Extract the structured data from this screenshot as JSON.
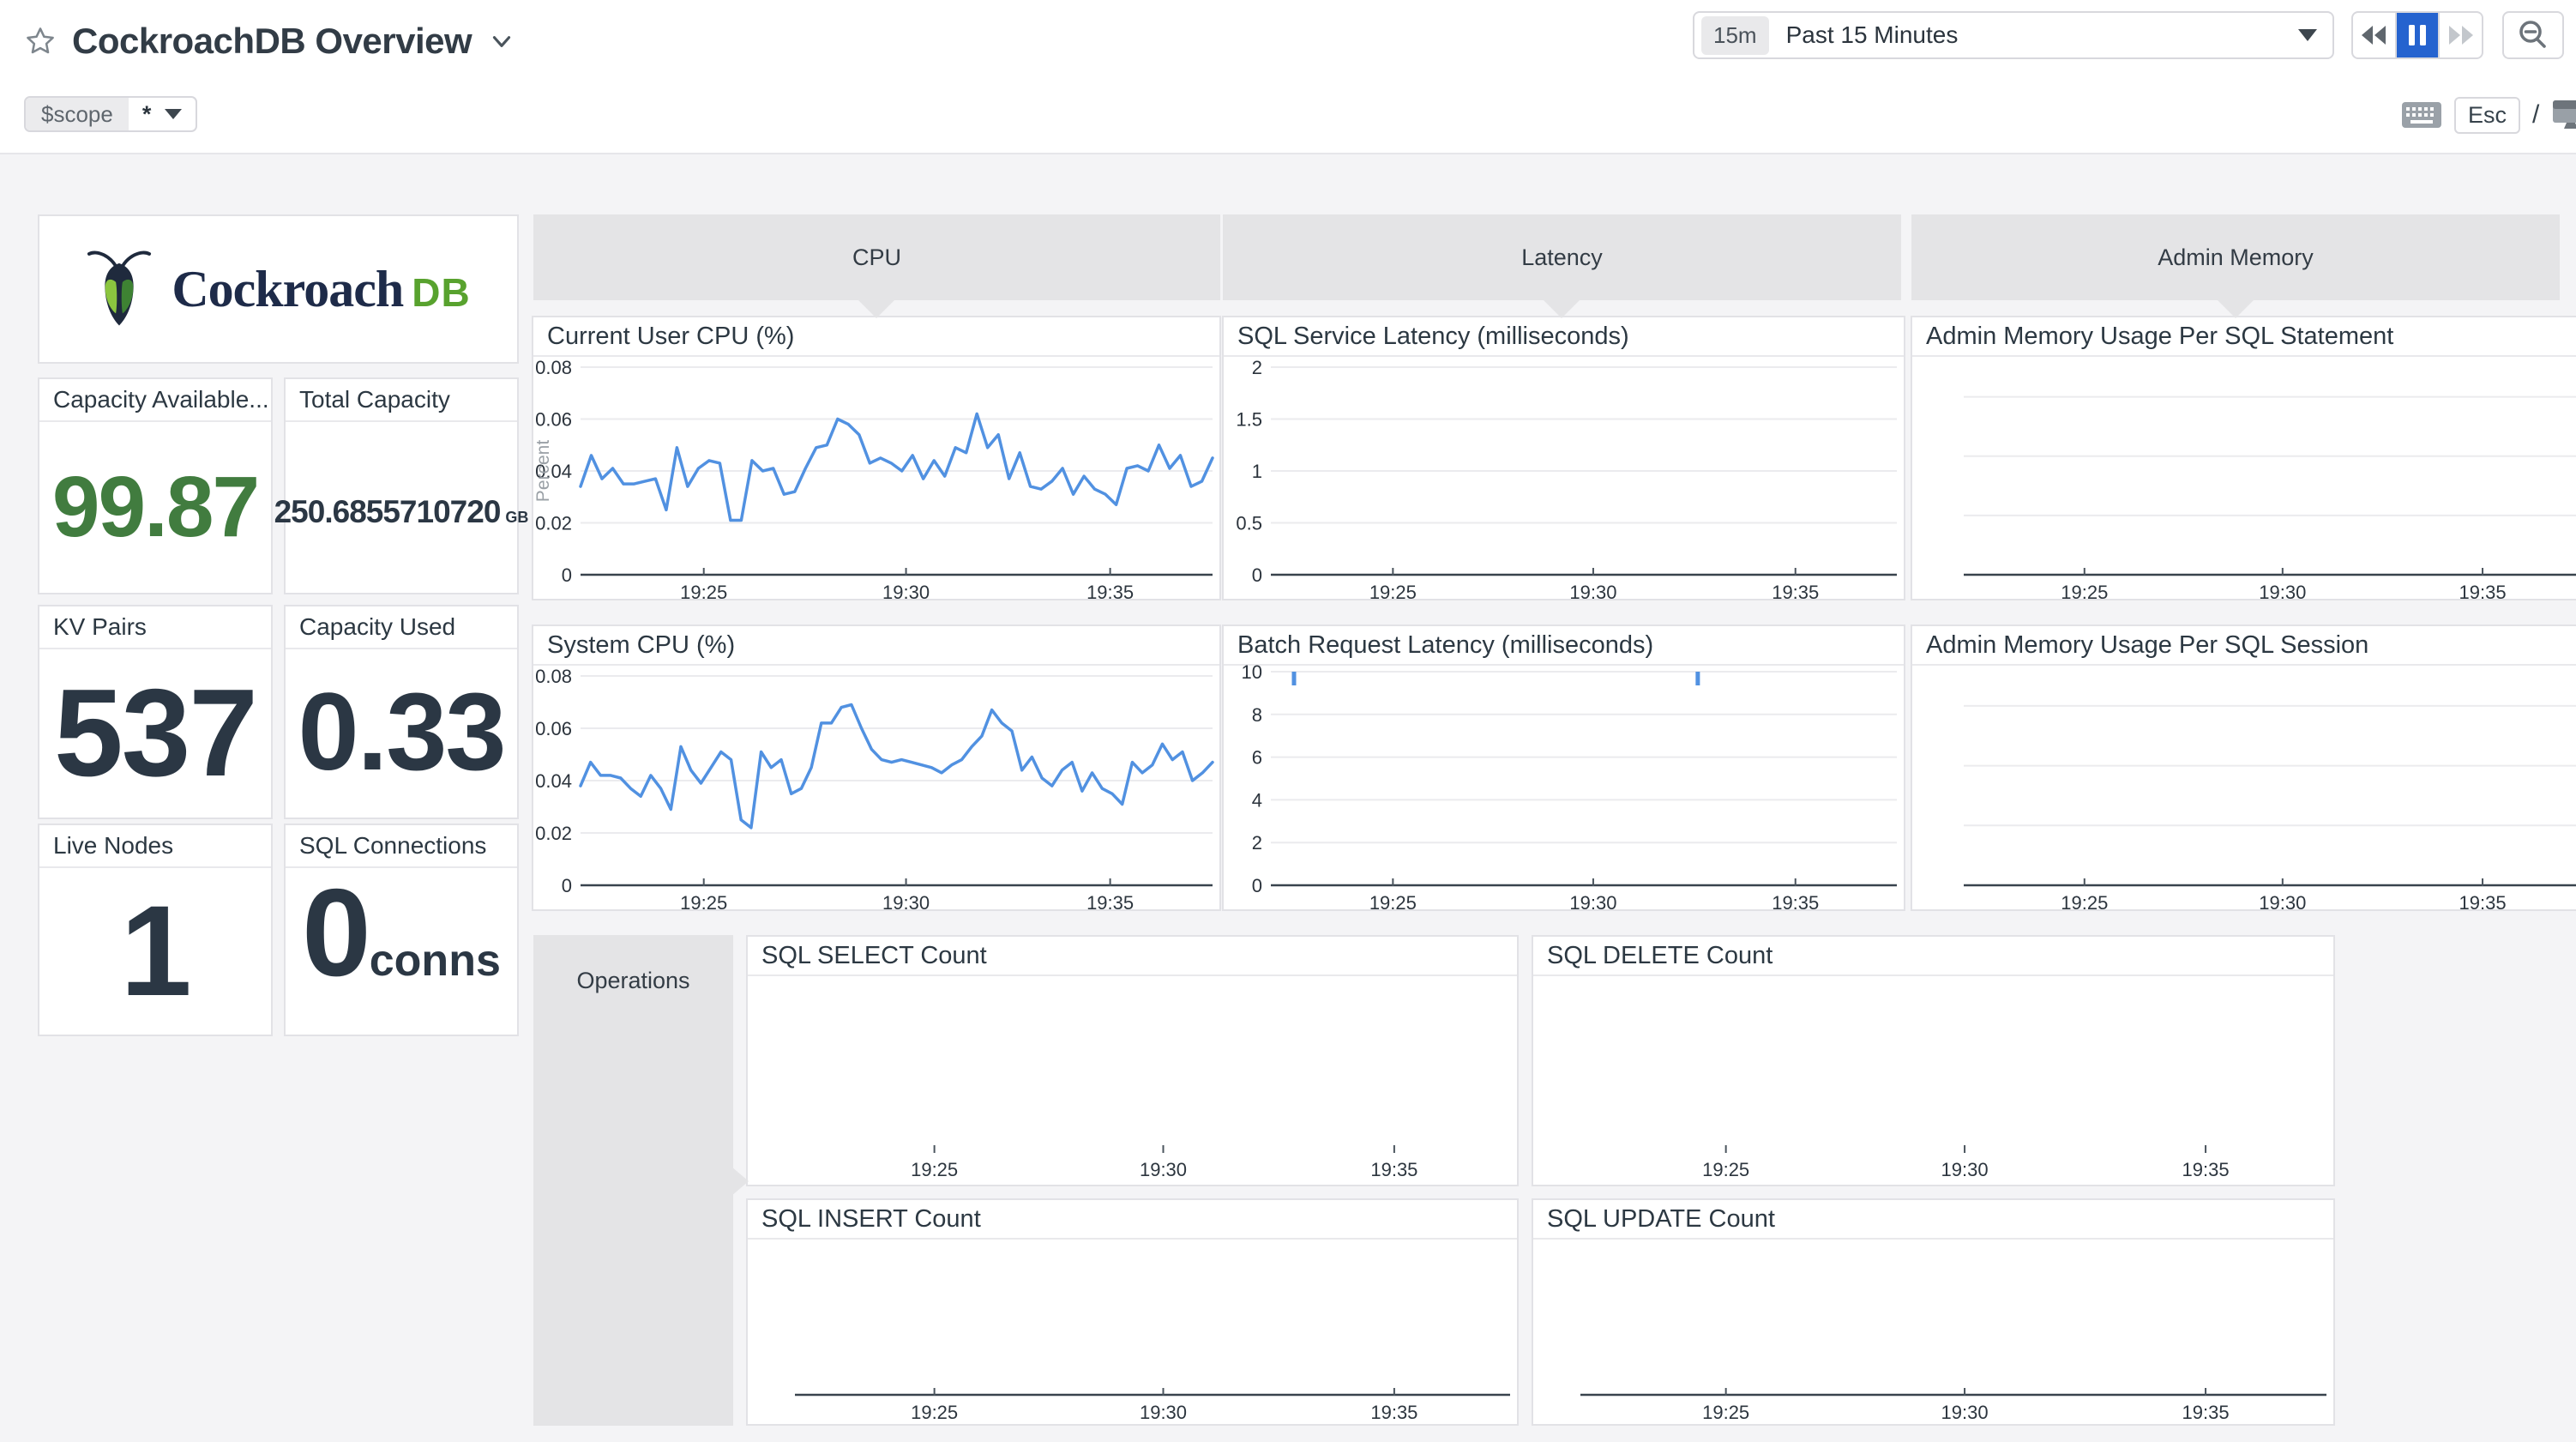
{
  "header": {
    "title": "CockroachDB Overview",
    "time_range": {
      "shortcut": "15m",
      "label": "Past 15 Minutes"
    },
    "esc_key": "Esc",
    "slash": "/"
  },
  "filters": {
    "scope_label": "$scope",
    "scope_value": "*"
  },
  "logo": {
    "brand": "Cockroach",
    "brand_suffix": "DB"
  },
  "groups": {
    "cpu": "CPU",
    "latency": "Latency",
    "admin_memory": "Admin Memory",
    "operations": "Operations"
  },
  "stats": [
    {
      "title": "Capacity Available...",
      "value": "99.87",
      "unit": ""
    },
    {
      "title": "Total Capacity",
      "value": "250.6855710720",
      "unit": "GB"
    },
    {
      "title": "KV Pairs",
      "value": "537",
      "unit": ""
    },
    {
      "title": "Capacity Used",
      "value": "0.33",
      "unit": ""
    },
    {
      "title": "Live Nodes",
      "value": "1",
      "unit": ""
    },
    {
      "title": "SQL Connections",
      "value": "0",
      "unit": "conns"
    }
  ],
  "colors": {
    "line_blue": "#5191e1",
    "accent_blue": "#2563cf",
    "stat_green": "#417c3f",
    "logo_green": "#58a22e",
    "navy": "#2b3744",
    "group_gray": "#e4e4e6"
  },
  "chart_data": [
    {
      "type": "line",
      "title": "Current User CPU (%)",
      "ylabel": "Percent",
      "ylim": [
        0,
        0.08
      ],
      "y_ticks": [
        {
          "v": 0.08,
          "label": "0.08"
        },
        {
          "v": 0.06,
          "label": "0.06"
        },
        {
          "v": 0.04,
          "label": "0.04"
        },
        {
          "v": 0.02,
          "label": "0.02"
        },
        {
          "v": 0,
          "label": "0"
        }
      ],
      "x_ticks": [
        "19:25",
        "19:30",
        "19:35"
      ],
      "baseline": true,
      "color": "#5191e1",
      "values": [
        0.034,
        0.046,
        0.037,
        0.041,
        0.035,
        0.035,
        0.036,
        0.037,
        0.025,
        0.049,
        0.034,
        0.041,
        0.044,
        0.043,
        0.021,
        0.021,
        0.044,
        0.04,
        0.041,
        0.031,
        0.032,
        0.041,
        0.049,
        0.05,
        0.06,
        0.058,
        0.054,
        0.043,
        0.045,
        0.043,
        0.04,
        0.046,
        0.037,
        0.044,
        0.038,
        0.049,
        0.047,
        0.062,
        0.049,
        0.054,
        0.037,
        0.047,
        0.034,
        0.033,
        0.036,
        0.041,
        0.031,
        0.038,
        0.033,
        0.031,
        0.027,
        0.041,
        0.042,
        0.04,
        0.05,
        0.041,
        0.046,
        0.034,
        0.036,
        0.045
      ]
    },
    {
      "type": "line",
      "title": "System CPU (%)",
      "ylim": [
        0,
        0.08
      ],
      "y_ticks": [
        {
          "v": 0.08,
          "label": "0.08"
        },
        {
          "v": 0.06,
          "label": "0.06"
        },
        {
          "v": 0.04,
          "label": "0.04"
        },
        {
          "v": 0.02,
          "label": "0.02"
        },
        {
          "v": 0,
          "label": "0"
        }
      ],
      "x_ticks": [
        "19:25",
        "19:30",
        "19:35"
      ],
      "baseline": true,
      "color": "#5191e1",
      "values": [
        0.038,
        0.047,
        0.042,
        0.042,
        0.041,
        0.037,
        0.034,
        0.042,
        0.037,
        0.029,
        0.053,
        0.044,
        0.039,
        0.045,
        0.051,
        0.048,
        0.025,
        0.022,
        0.051,
        0.045,
        0.048,
        0.035,
        0.037,
        0.045,
        0.062,
        0.062,
        0.068,
        0.069,
        0.06,
        0.052,
        0.048,
        0.047,
        0.048,
        0.047,
        0.046,
        0.045,
        0.043,
        0.046,
        0.048,
        0.053,
        0.057,
        0.067,
        0.062,
        0.059,
        0.044,
        0.049,
        0.041,
        0.038,
        0.044,
        0.047,
        0.036,
        0.043,
        0.037,
        0.035,
        0.031,
        0.047,
        0.043,
        0.046,
        0.054,
        0.048,
        0.051,
        0.04,
        0.043,
        0.047
      ]
    },
    {
      "type": "line",
      "title": "SQL Service Latency (milliseconds)",
      "ylim": [
        0,
        2
      ],
      "y_ticks": [
        {
          "v": 2,
          "label": "2"
        },
        {
          "v": 1.5,
          "label": "1.5"
        },
        {
          "v": 1,
          "label": "1"
        },
        {
          "v": 0.5,
          "label": "0.5"
        },
        {
          "v": 0,
          "label": "0"
        }
      ],
      "x_ticks": [
        "19:25",
        "19:30",
        "19:35"
      ],
      "baseline": true,
      "values": null
    },
    {
      "type": "line",
      "title": "Batch Request Latency (milliseconds)",
      "ylim": [
        0,
        10
      ],
      "pad_top": 9,
      "y_ticks": [
        {
          "v": 10,
          "label": "10"
        },
        {
          "v": 8,
          "label": "8"
        },
        {
          "v": 6,
          "label": "6"
        },
        {
          "v": 4,
          "label": "4"
        },
        {
          "v": 2,
          "label": "2"
        },
        {
          "v": 0,
          "label": "0"
        }
      ],
      "x_ticks": [
        "19:25",
        "19:30",
        "19:35"
      ],
      "baseline": true,
      "color": "#5191e1",
      "values": null,
      "marks": [
        {
          "f": 0.037,
          "v": 10
        },
        {
          "f": 0.682,
          "v": 10
        }
      ]
    },
    {
      "type": "line",
      "title": "Admin Memory Usage Per SQL Statement",
      "ylim": [
        0,
        3.5
      ],
      "pad_left": 60,
      "pad_right": 0,
      "y_ticks": [
        {
          "v": 3
        },
        {
          "v": 2
        },
        {
          "v": 1
        }
      ],
      "x_ticks": [
        "19:25",
        "19:30",
        "19:35"
      ],
      "baseline": true,
      "values": null
    },
    {
      "type": "line",
      "title": "Admin Memory Usage Per SQL Session",
      "ylim": [
        0,
        3.5
      ],
      "pad_left": 60,
      "pad_right": 0,
      "y_ticks": [
        {
          "v": 3
        },
        {
          "v": 2
        },
        {
          "v": 1
        }
      ],
      "x_ticks": [
        "19:25",
        "19:30",
        "19:35"
      ],
      "baseline": true,
      "values": null
    },
    {
      "type": "line",
      "title": "SQL SELECT Count",
      "pad_bottom": 38,
      "x_ticks": [
        "19:25",
        "19:30",
        "19:35"
      ],
      "baseline": false,
      "values": null
    },
    {
      "type": "line",
      "title": "SQL DELETE Count",
      "pad_bottom": 38,
      "x_ticks": [
        "19:25",
        "19:30",
        "19:35"
      ],
      "baseline": false,
      "values": null
    },
    {
      "type": "line",
      "title": "SQL INSERT Count",
      "pad_bottom": 34,
      "x_ticks": [
        "19:25",
        "19:30",
        "19:35"
      ],
      "baseline": true,
      "values": null
    },
    {
      "type": "line",
      "title": "SQL UPDATE Count",
      "pad_bottom": 34,
      "x_ticks": [
        "19:25",
        "19:30",
        "19:35"
      ],
      "baseline": true,
      "values": null
    }
  ]
}
